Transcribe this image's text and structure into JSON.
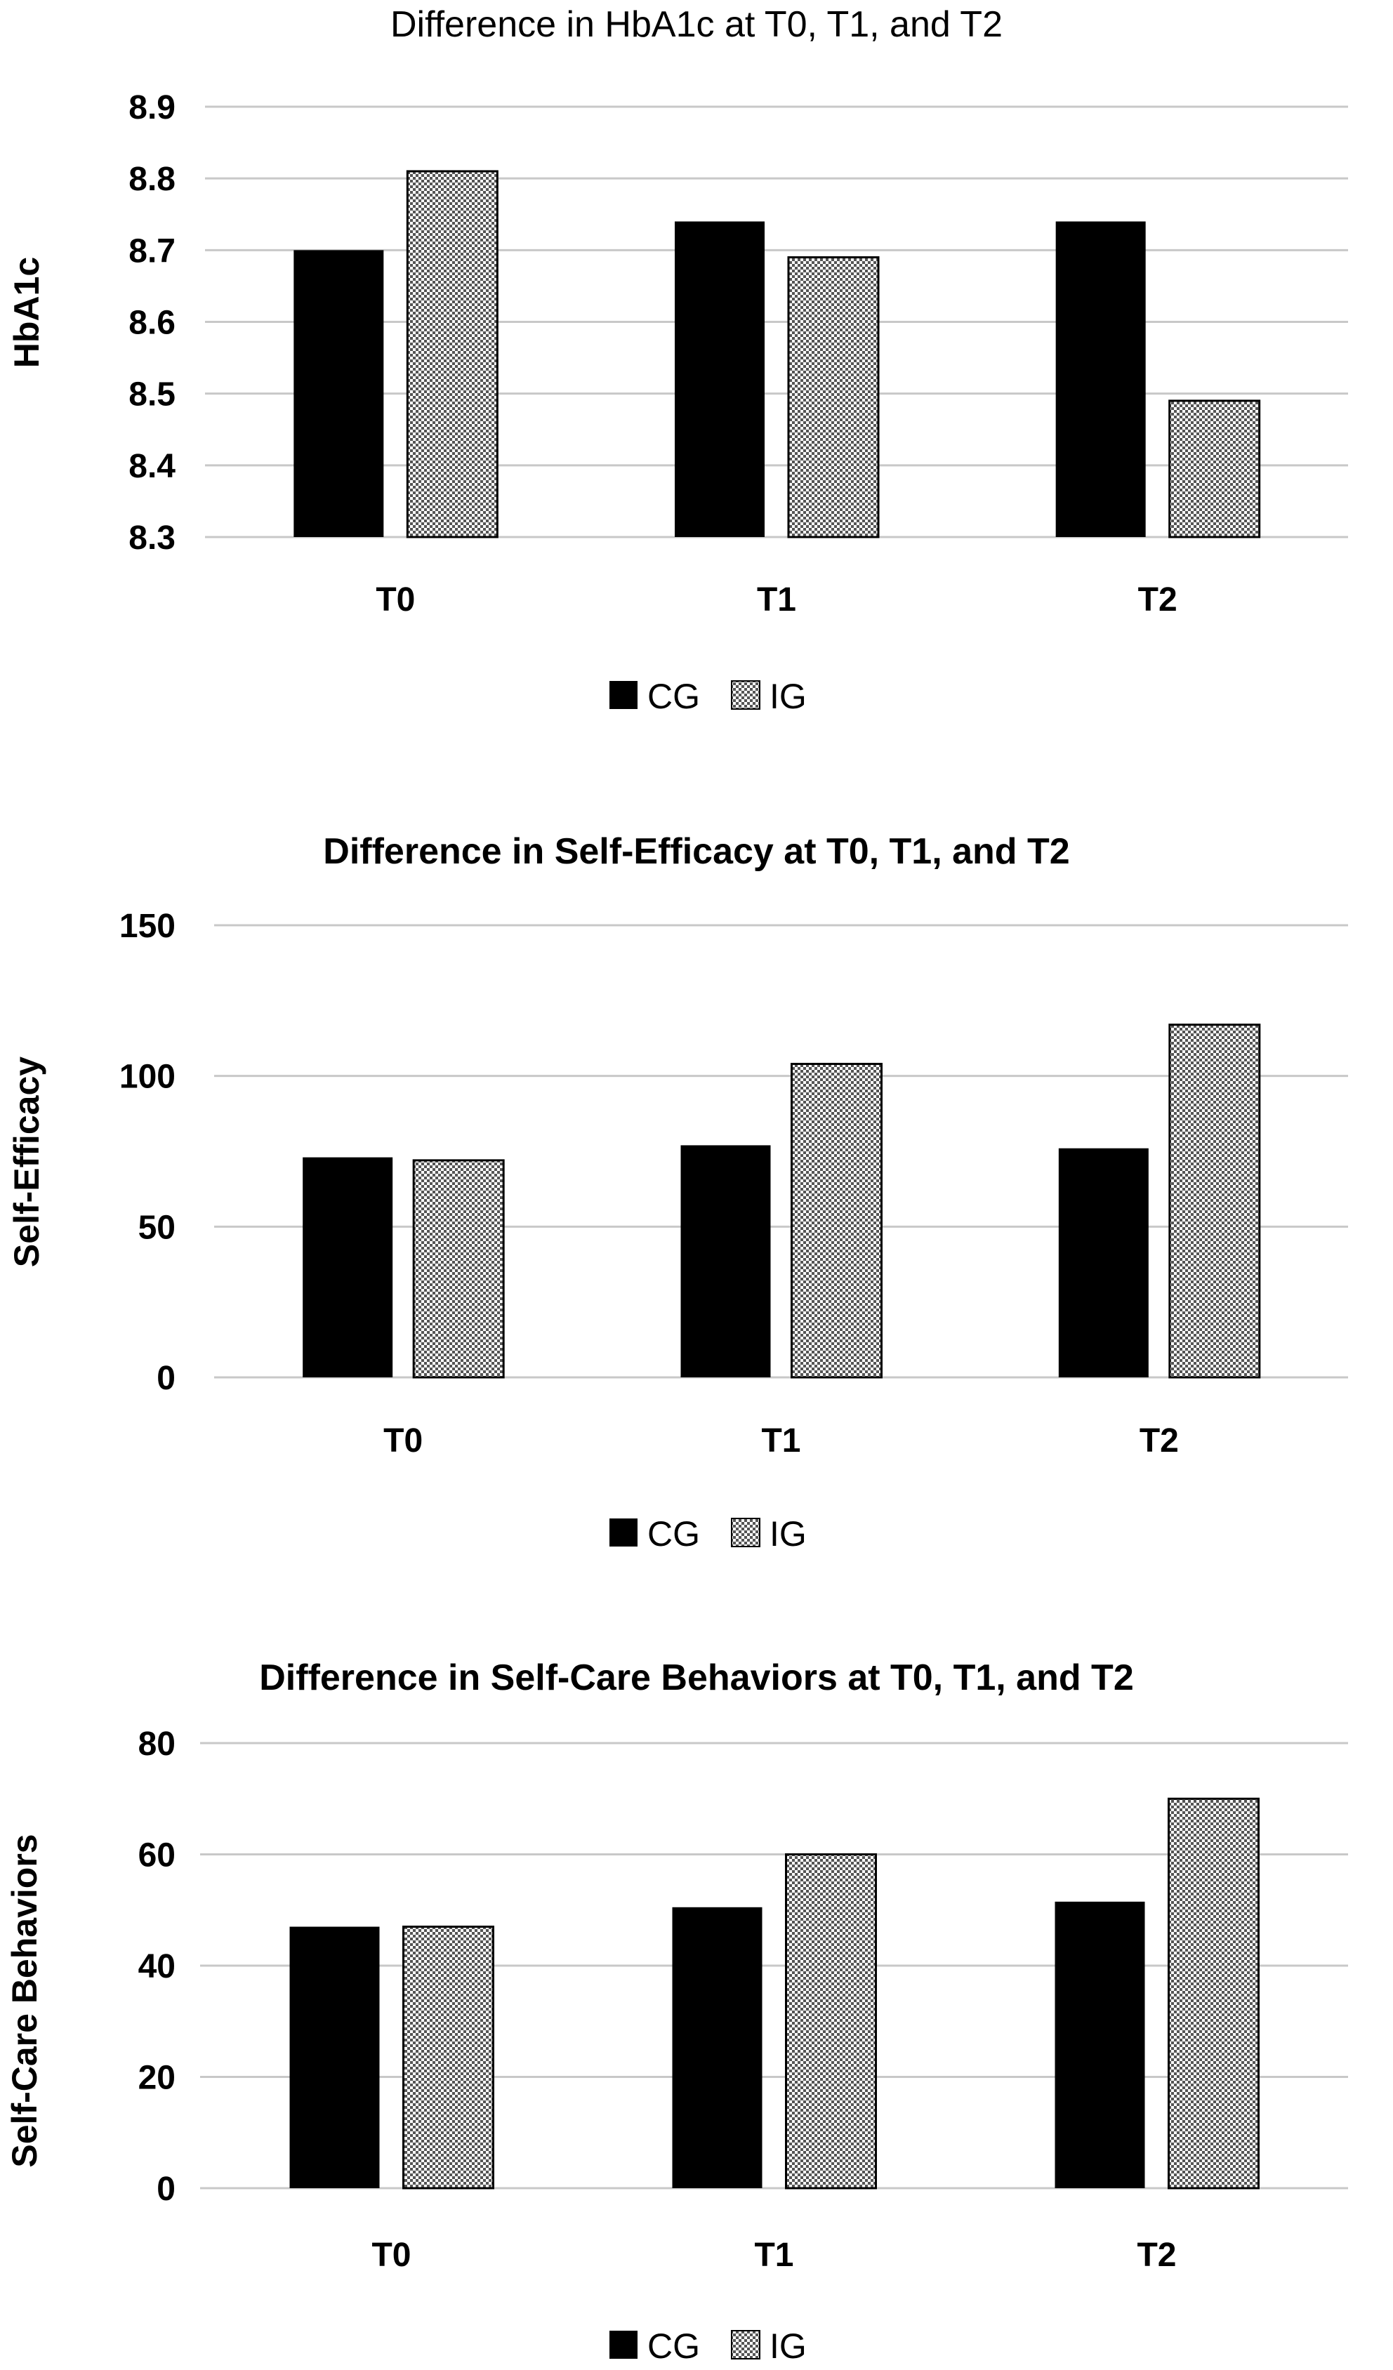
{
  "colors": {
    "cg_fill": "#000000",
    "ig_pattern": "checkerboard-gray",
    "gridline": "#c8c8c8"
  },
  "chart_data": [
    {
      "type": "bar",
      "title": "Difference in HbA1c at T0, T1, and T2",
      "ylabel": "HbA1c",
      "xlabel": "",
      "categories": [
        "T0",
        "T1",
        "T2"
      ],
      "series": [
        {
          "name": "CG",
          "values": [
            8.7,
            8.74,
            8.74
          ]
        },
        {
          "name": "IG",
          "values": [
            8.81,
            8.69,
            8.49
          ]
        }
      ],
      "ylim": [
        8.3,
        8.9
      ],
      "yticks": [
        "8.3",
        "8.4",
        "8.5",
        "8.6",
        "8.7",
        "8.8",
        "8.9"
      ],
      "grid": true,
      "legend_position": "bottom"
    },
    {
      "type": "bar",
      "title": "Difference in Self-Efficacy at T0, T1, and T2",
      "ylabel": "Self-Efficacy",
      "xlabel": "",
      "categories": [
        "T0",
        "T1",
        "T2"
      ],
      "series": [
        {
          "name": "CG",
          "values": [
            73,
            77,
            76
          ]
        },
        {
          "name": "IG",
          "values": [
            72,
            104,
            117
          ]
        }
      ],
      "ylim": [
        0,
        150
      ],
      "yticks": [
        "0",
        "50",
        "100",
        "150"
      ],
      "grid": true,
      "legend_position": "bottom"
    },
    {
      "type": "bar",
      "title": "Difference in Self-Care Behaviors at T0, T1, and T2",
      "ylabel": "Self-Care Behaviors",
      "xlabel": "",
      "categories": [
        "T0",
        "T1",
        "T2"
      ],
      "series": [
        {
          "name": "CG",
          "values": [
            47,
            50.5,
            51.5
          ]
        },
        {
          "name": "IG",
          "values": [
            47,
            60,
            70
          ]
        }
      ],
      "ylim": [
        0,
        80
      ],
      "yticks": [
        "0",
        "20",
        "40",
        "60",
        "80"
      ],
      "grid": true,
      "legend_position": "bottom"
    }
  ]
}
